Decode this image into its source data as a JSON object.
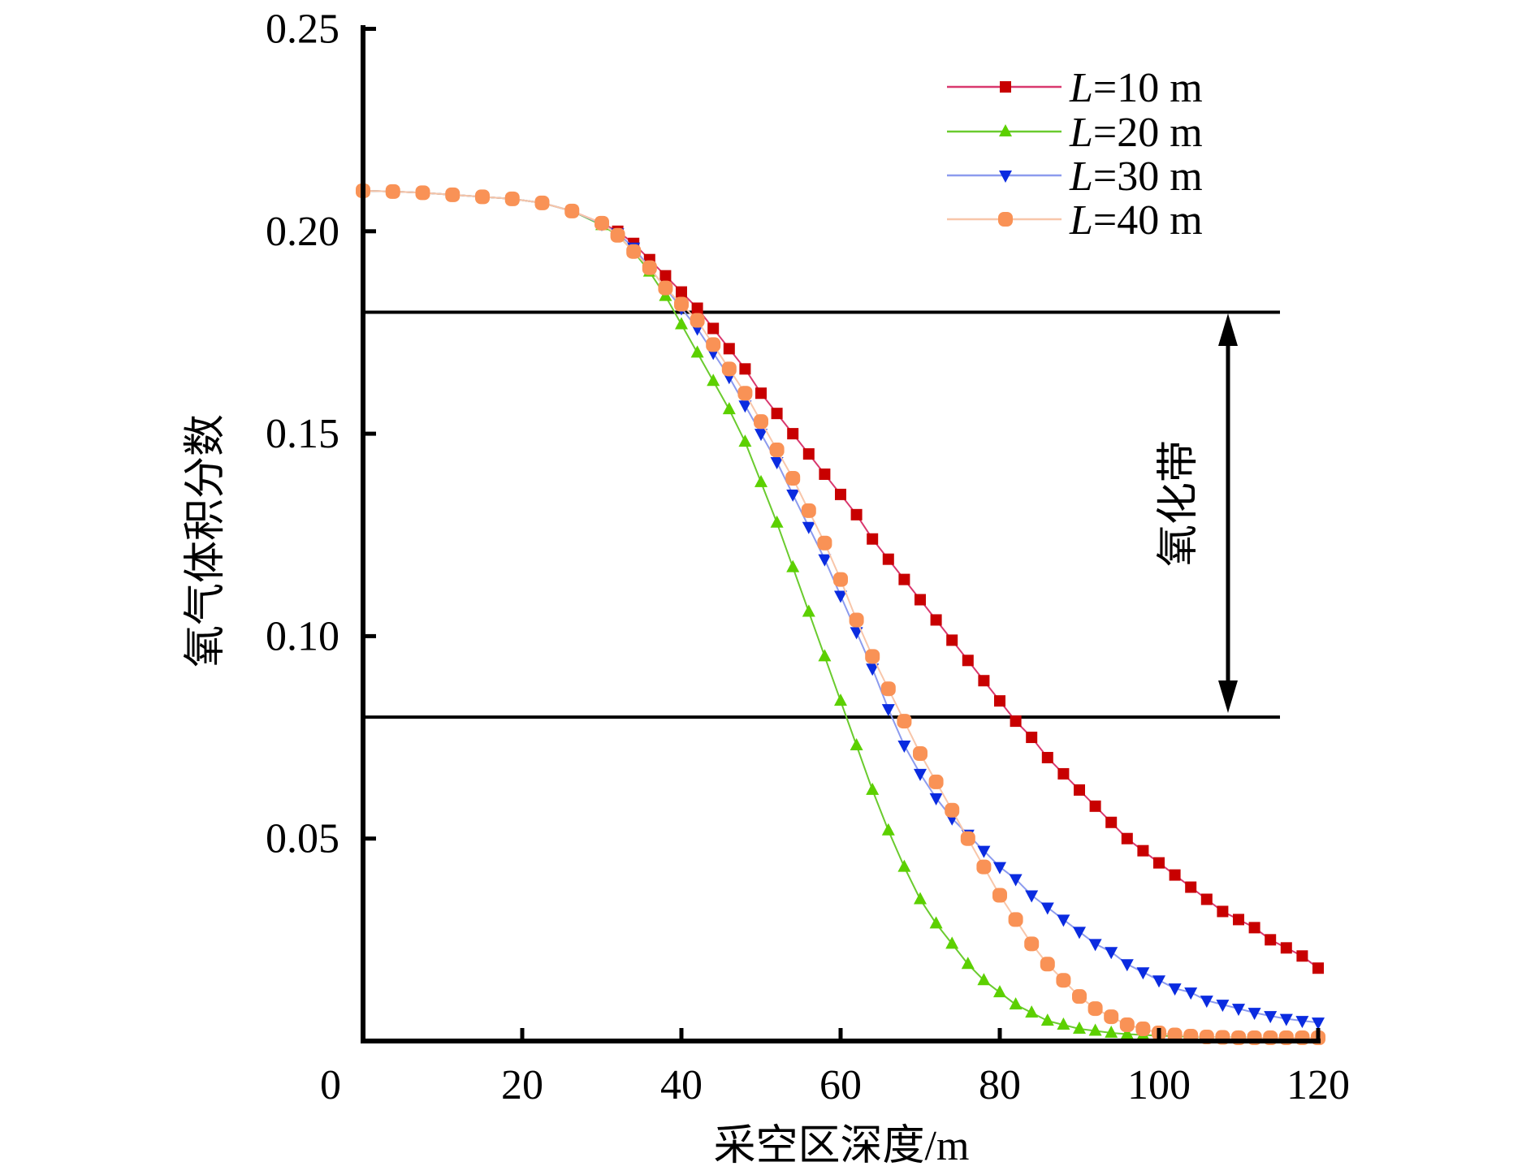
{
  "chart_data": {
    "type": "line",
    "title": "",
    "xlabel": "采空区深度/m",
    "ylabel": "氧气体积分数",
    "xlim": [
      0,
      120
    ],
    "ylim": [
      0,
      0.25
    ],
    "xticks": [
      0,
      20,
      40,
      60,
      80,
      100,
      120
    ],
    "xtick_labels": [
      "0",
      "20",
      "40",
      "60",
      "80",
      "100",
      "120"
    ],
    "yticks": [
      0.05,
      0.1,
      0.15,
      0.2,
      0.25
    ],
    "ytick_labels": [
      "0.05",
      "0.10",
      "0.15",
      "0.20",
      "0.25"
    ],
    "grid": false,
    "legend_position": "top-right",
    "series": [
      {
        "name": "L=10 m",
        "legend_var": "L",
        "legend_rest": "=10 m",
        "marker": "square",
        "marker_color": "#C80000",
        "line_color": "#D9386E",
        "x": [
          0,
          3.75,
          7.5,
          11.25,
          15,
          18.75,
          22.5,
          26.25,
          30,
          32,
          34,
          36,
          38,
          40,
          42,
          44,
          46,
          48,
          50,
          52,
          54,
          56,
          58,
          60,
          62,
          64,
          66,
          68,
          70,
          72,
          74,
          76,
          78,
          80,
          82,
          84,
          86,
          88,
          90,
          92,
          94,
          96,
          98,
          100,
          102,
          104,
          106,
          108,
          110,
          112,
          114,
          116,
          118,
          120
        ],
        "y": [
          0.21,
          0.2098,
          0.2095,
          0.209,
          0.2085,
          0.208,
          0.207,
          0.205,
          0.202,
          0.2,
          0.197,
          0.193,
          0.189,
          0.185,
          0.181,
          0.176,
          0.171,
          0.166,
          0.16,
          0.155,
          0.15,
          0.145,
          0.14,
          0.135,
          0.13,
          0.124,
          0.119,
          0.114,
          0.109,
          0.104,
          0.099,
          0.094,
          0.089,
          0.084,
          0.079,
          0.075,
          0.07,
          0.066,
          0.062,
          0.058,
          0.054,
          0.05,
          0.047,
          0.044,
          0.041,
          0.038,
          0.035,
          0.032,
          0.03,
          0.028,
          0.025,
          0.023,
          0.021,
          0.018
        ]
      },
      {
        "name": "L=20 m",
        "legend_var": "L",
        "legend_rest": "=20 m",
        "marker": "triangle-up",
        "marker_color": "#5CD000",
        "line_color": "#6ACB2E",
        "x": [
          0,
          3.75,
          7.5,
          11.25,
          15,
          18.75,
          22.5,
          26.25,
          30,
          32,
          34,
          36,
          38,
          40,
          42,
          44,
          46,
          48,
          50,
          52,
          54,
          56,
          58,
          60,
          62,
          64,
          66,
          68,
          70,
          72,
          74,
          76,
          78,
          80,
          82,
          84,
          86,
          88,
          90,
          92,
          94,
          96,
          98,
          100,
          102,
          104,
          106,
          108,
          110,
          112,
          114,
          116,
          118,
          120
        ],
        "y": [
          0.21,
          0.2098,
          0.2095,
          0.209,
          0.2085,
          0.208,
          0.207,
          0.205,
          0.2015,
          0.199,
          0.195,
          0.19,
          0.184,
          0.177,
          0.17,
          0.163,
          0.156,
          0.148,
          0.138,
          0.128,
          0.117,
          0.106,
          0.095,
          0.084,
          0.073,
          0.062,
          0.052,
          0.043,
          0.035,
          0.029,
          0.024,
          0.019,
          0.015,
          0.012,
          0.009,
          0.007,
          0.005,
          0.004,
          0.003,
          0.0025,
          0.002,
          0.0017,
          0.0015,
          0.0013,
          0.0012,
          0.001,
          0.001,
          0.0009,
          0.0009,
          0.0008,
          0.0008,
          0.0008,
          0.0008,
          0.0008
        ]
      },
      {
        "name": "L=30 m",
        "legend_var": "L",
        "legend_rest": "=30 m",
        "marker": "triangle-down",
        "marker_color": "#0A2BE0",
        "line_color": "#8C9BEE",
        "x": [
          0,
          3.75,
          7.5,
          11.25,
          15,
          18.75,
          22.5,
          26.25,
          30,
          32,
          34,
          36,
          38,
          40,
          42,
          44,
          46,
          48,
          50,
          52,
          54,
          56,
          58,
          60,
          62,
          64,
          66,
          68,
          70,
          72,
          74,
          76,
          78,
          80,
          82,
          84,
          86,
          88,
          90,
          92,
          94,
          96,
          98,
          100,
          102,
          104,
          106,
          108,
          110,
          112,
          114,
          116,
          118,
          120
        ],
        "y": [
          0.21,
          0.2098,
          0.2095,
          0.209,
          0.2085,
          0.208,
          0.207,
          0.205,
          0.2018,
          0.1995,
          0.196,
          0.191,
          0.186,
          0.181,
          0.176,
          0.17,
          0.164,
          0.157,
          0.15,
          0.143,
          0.135,
          0.127,
          0.119,
          0.11,
          0.101,
          0.092,
          0.082,
          0.073,
          0.066,
          0.06,
          0.055,
          0.051,
          0.047,
          0.043,
          0.04,
          0.036,
          0.033,
          0.03,
          0.027,
          0.024,
          0.022,
          0.019,
          0.017,
          0.015,
          0.013,
          0.012,
          0.01,
          0.009,
          0.008,
          0.007,
          0.0062,
          0.0055,
          0.005,
          0.0046
        ]
      },
      {
        "name": "L=40 m",
        "legend_var": "L",
        "legend_rest": "=40 m",
        "marker": "circle",
        "marker_color": "#F99256",
        "line_color": "#F8C6AA",
        "x": [
          0,
          3.75,
          7.5,
          11.25,
          15,
          18.75,
          22.5,
          26.25,
          30,
          32,
          34,
          36,
          38,
          40,
          42,
          44,
          46,
          48,
          50,
          52,
          54,
          56,
          58,
          60,
          62,
          64,
          66,
          68,
          70,
          72,
          74,
          76,
          78,
          80,
          82,
          84,
          86,
          88,
          90,
          92,
          94,
          96,
          98,
          100,
          102,
          104,
          106,
          108,
          110,
          112,
          114,
          116,
          118,
          120
        ],
        "y": [
          0.21,
          0.2098,
          0.2095,
          0.209,
          0.2085,
          0.208,
          0.207,
          0.205,
          0.202,
          0.199,
          0.195,
          0.191,
          0.186,
          0.182,
          0.178,
          0.172,
          0.166,
          0.16,
          0.153,
          0.146,
          0.139,
          0.131,
          0.123,
          0.114,
          0.104,
          0.095,
          0.087,
          0.079,
          0.071,
          0.064,
          0.057,
          0.05,
          0.043,
          0.036,
          0.03,
          0.024,
          0.019,
          0.015,
          0.011,
          0.008,
          0.006,
          0.004,
          0.003,
          0.002,
          0.0015,
          0.0012,
          0.001,
          0.0009,
          0.0008,
          0.0008,
          0.0008,
          0.0008,
          0.0008,
          0.0008
        ]
      }
    ],
    "reference_lines": [
      {
        "y": 0.18,
        "color": "#000000"
      },
      {
        "y": 0.08,
        "color": "#000000"
      }
    ],
    "annotations": [
      {
        "text": "氧化带",
        "type": "double-arrow",
        "y_range": [
          0.08,
          0.18
        ]
      }
    ]
  }
}
